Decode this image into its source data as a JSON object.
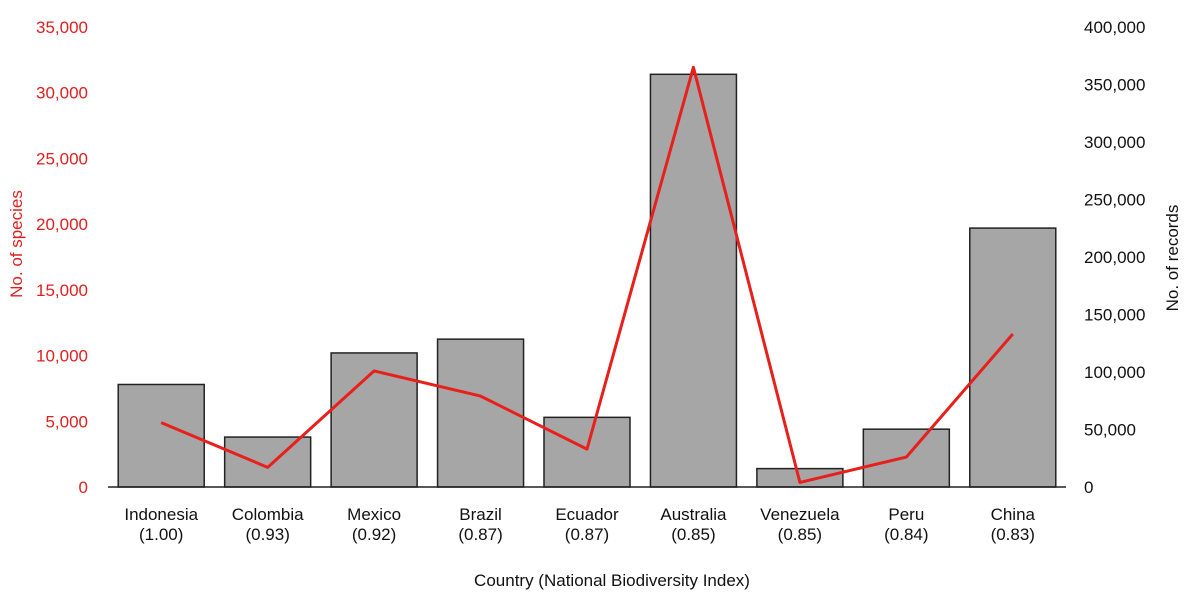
{
  "chart_data": {
    "type": "bar",
    "combo": "bar+line",
    "xlabel": "Country (National Biodiversity Index)",
    "ylabel_left": "No. of species",
    "ylabel_right": "No. of records",
    "categories": [
      "Indonesia",
      "Colombia",
      "Mexico",
      "Brazil",
      "Ecuador",
      "Australia",
      "Venezuela",
      "Peru",
      "China"
    ],
    "category_index": [
      "(1.00)",
      "(0.93)",
      "(0.92)",
      "(0.87)",
      "(0.87)",
      "(0.85)",
      "(0.85)",
      "(0.84)",
      "(0.83)"
    ],
    "series": [
      {
        "type": "bar",
        "axis": "left",
        "values": [
          7800,
          3800,
          10200,
          11250,
          5300,
          31400,
          1400,
          4400,
          19700
        ]
      },
      {
        "type": "line",
        "axis": "right",
        "values": [
          56000,
          17000,
          101000,
          79000,
          33000,
          365000,
          4000,
          26000,
          133000
        ]
      }
    ],
    "ylim_left": [
      0,
      35000
    ],
    "ylim_right": [
      0,
      400000
    ],
    "yticks_left": [
      "0",
      "5,000",
      "10,000",
      "15,000",
      "20,000",
      "25,000",
      "30,000",
      "35,000"
    ],
    "yticks_right": [
      "0",
      "50,000",
      "100,000",
      "150,000",
      "200,000",
      "250,000",
      "300,000",
      "350,000",
      "400,000"
    ],
    "grid": false,
    "legend": "none",
    "colors": {
      "bar_fill": "#a6a6a6",
      "bar_stroke": "#222222",
      "line": "#e8201c",
      "left_axis_text": "#e02020",
      "right_axis_text": "#111111"
    }
  }
}
